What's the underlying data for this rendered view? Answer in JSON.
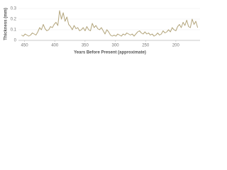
{
  "chart_data": {
    "type": "line",
    "x_label": "Years Before Present (approximate)",
    "y_label": "Thickness (mm)",
    "x": [
      455,
      452,
      449,
      446,
      443,
      440,
      437,
      434,
      431,
      428,
      425,
      422,
      419,
      416,
      413,
      410,
      407,
      404,
      401,
      398,
      395,
      392,
      389,
      386,
      383,
      380,
      377,
      374,
      371,
      368,
      365,
      362,
      359,
      356,
      353,
      350,
      347,
      344,
      341,
      338,
      335,
      332,
      329,
      326,
      323,
      320,
      317,
      314,
      311,
      308,
      305,
      302,
      299,
      296,
      293,
      290,
      287,
      284,
      281,
      278,
      275,
      272,
      269,
      266,
      263,
      260,
      257,
      254,
      251,
      248,
      245,
      242,
      239,
      236,
      233,
      230,
      227,
      224,
      221,
      218,
      215,
      212,
      209,
      206,
      203,
      200,
      197,
      194,
      191,
      188,
      185,
      182,
      179,
      176,
      173,
      170,
      167,
      164
    ],
    "series": [
      {
        "color": "#b3a57c",
        "values": [
          0.05,
          0.04,
          0.06,
          0.05,
          0.04,
          0.05,
          0.07,
          0.06,
          0.05,
          0.08,
          0.12,
          0.1,
          0.15,
          0.11,
          0.09,
          0.1,
          0.13,
          0.12,
          0.15,
          0.17,
          0.14,
          0.28,
          0.2,
          0.26,
          0.18,
          0.22,
          0.15,
          0.13,
          0.1,
          0.14,
          0.11,
          0.12,
          0.09,
          0.1,
          0.12,
          0.09,
          0.13,
          0.1,
          0.09,
          0.16,
          0.12,
          0.14,
          0.11,
          0.1,
          0.12,
          0.09,
          0.06,
          0.1,
          0.08,
          0.05,
          0.04,
          0.05,
          0.04,
          0.06,
          0.05,
          0.04,
          0.06,
          0.05,
          0.07,
          0.06,
          0.05,
          0.06,
          0.04,
          0.06,
          0.08,
          0.09,
          0.07,
          0.06,
          0.08,
          0.06,
          0.07,
          0.05,
          0.06,
          0.04,
          0.05,
          0.07,
          0.05,
          0.06,
          0.09,
          0.07,
          0.08,
          0.1,
          0.08,
          0.12,
          0.1,
          0.09,
          0.13,
          0.15,
          0.12,
          0.17,
          0.14,
          0.19,
          0.13,
          0.12,
          0.2,
          0.15,
          0.18,
          0.12
        ]
      }
    ],
    "xlim": [
      460,
      160
    ],
    "xticks": [
      450,
      400,
      350,
      300,
      250,
      200
    ],
    "ylim": [
      0,
      0.3
    ],
    "yticks": [
      0,
      0.1,
      0.2,
      0.3
    ],
    "grid": true
  }
}
